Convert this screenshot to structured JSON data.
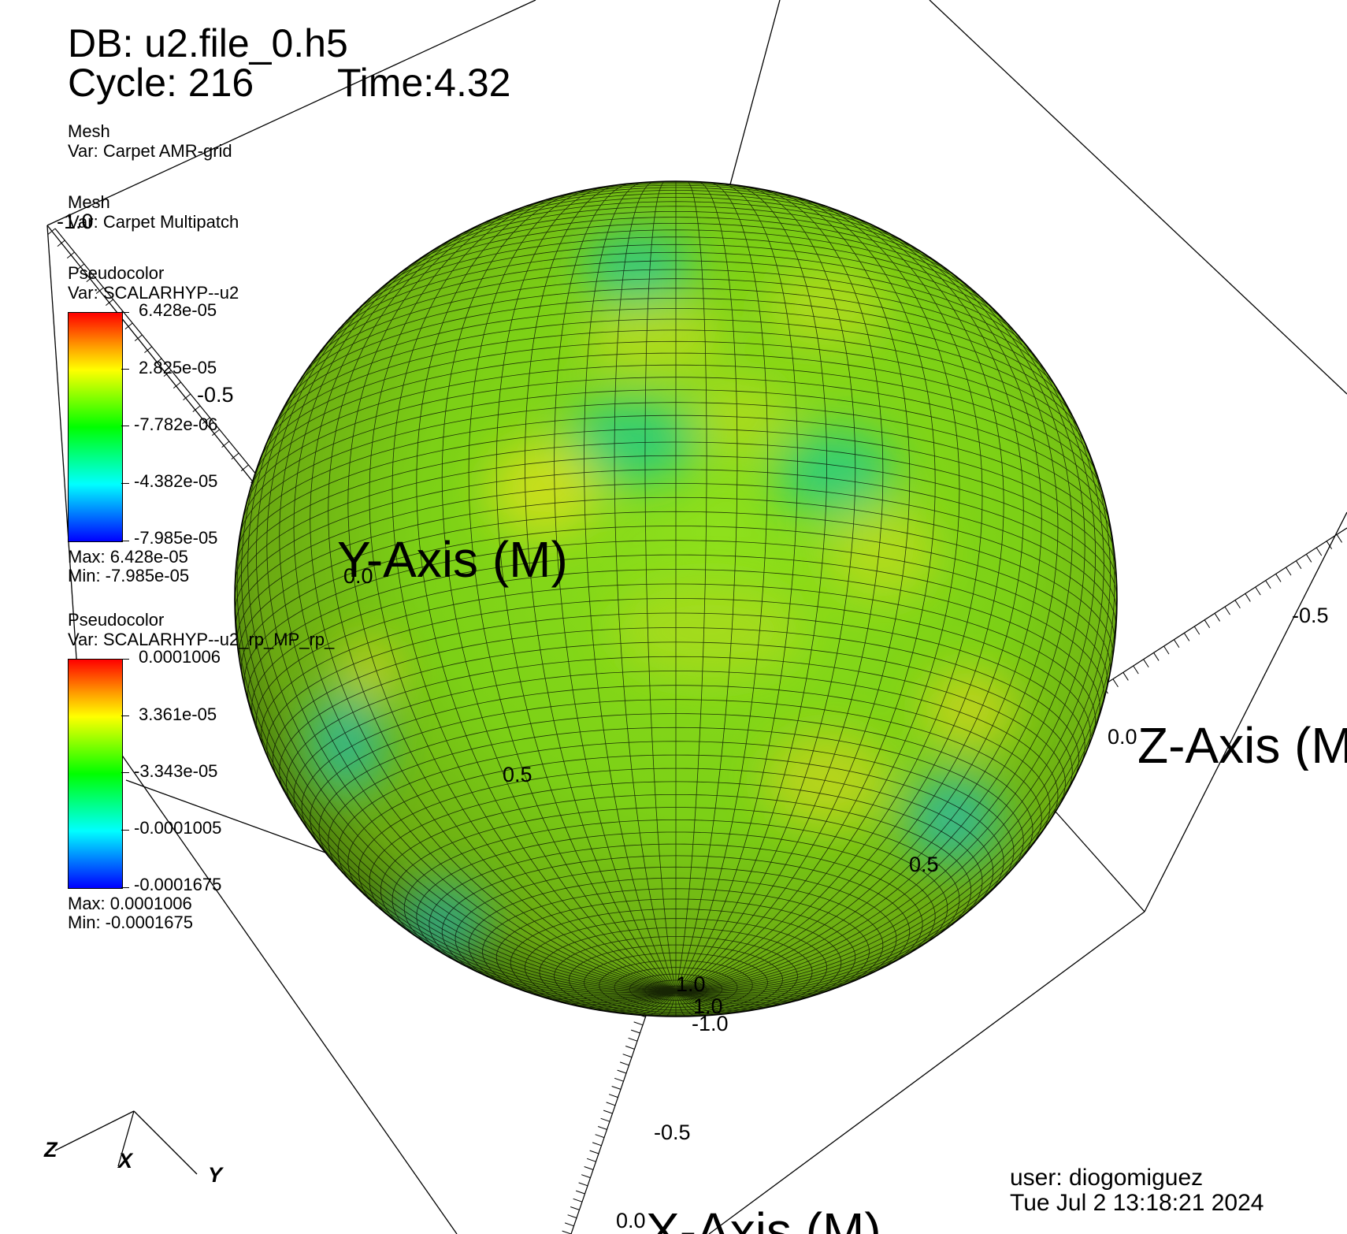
{
  "header": {
    "db": "DB: u2.file_0.h5",
    "cycle": "Cycle: 216",
    "time": "Time:4.32"
  },
  "plots": [
    {
      "kind": "Mesh",
      "var": "Var: Carpet AMR-grid"
    },
    {
      "kind": "Mesh",
      "var": "Var: Carpet Multipatch"
    }
  ],
  "legend1": {
    "kind": "Pseudocolor",
    "var": "Var: SCALARHYP--u2",
    "ticks": [
      "6.428e-05",
      "2.825e-05",
      "-7.782e-06",
      "-4.382e-05",
      "-7.985e-05"
    ],
    "max": "Max:  6.428e-05",
    "min": "Min: -7.985e-05"
  },
  "legend2": {
    "kind": "Pseudocolor",
    "var": "Var: SCALARHYP--u2_rp_MP_rp_",
    "ticks": [
      "0.0001006",
      "3.361e-05",
      "-3.343e-05",
      "-0.0001005",
      "-0.0001675"
    ],
    "max": "Max:  0.0001006",
    "min": "Min: -0.0001675"
  },
  "axes": {
    "y_title": "Y-Axis (M)",
    "z_title": "Z-Axis (M)",
    "x_title": "X-Axis (M)",
    "ticks": {
      "t1": "-1.0",
      "t2": "-0.5",
      "t3": "0.0",
      "t4": "0.5",
      "t5": "0.0",
      "t6": "-0.5",
      "t7": "0.5",
      "t8": "1.0",
      "t9": "1.0",
      "t10": "-1.0",
      "t11": "-0.5",
      "t12": "0.0"
    }
  },
  "triad": {
    "z": "Z",
    "x": "X",
    "y": "Y"
  },
  "user": {
    "name": "user: diogomiguez",
    "date": "Tue Jul  2 13:18:21 2024"
  },
  "colors": {
    "sphere_base": "#7fd41a",
    "sphere_yellow": "#c8e01a",
    "sphere_cyan": "#1fd49a"
  }
}
